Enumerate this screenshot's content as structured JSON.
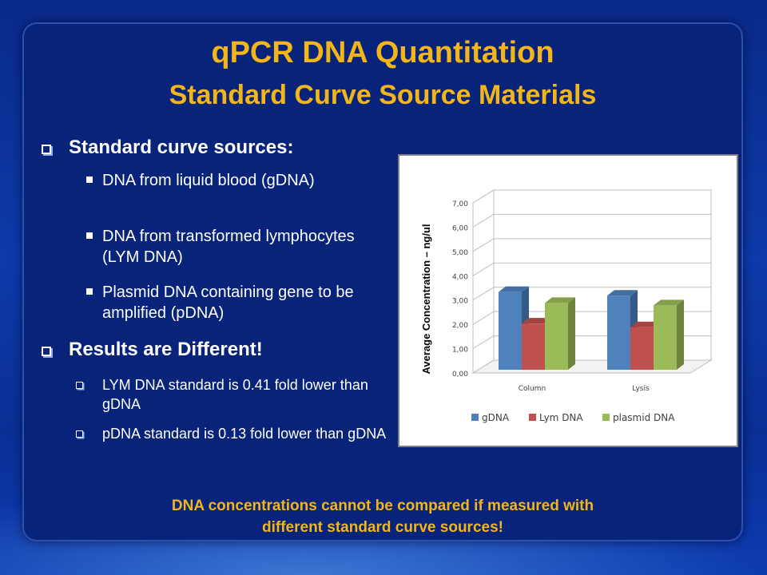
{
  "slide": {
    "title": "qPCR DNA Quantitation",
    "subtitle": "Standard Curve Source Materials",
    "footer_line1": "DNA concentrations cannot be compared if measured with",
    "footer_line2": "different standard curve sources!",
    "accent_color": "#f2b51a"
  },
  "bullets": {
    "sources_heading": "Standard curve sources:",
    "sources": [
      "DNA from liquid blood (gDNA)",
      "DNA from transformed lymphocytes (LYM DNA)",
      "Plasmid DNA containing gene to be amplified (pDNA)"
    ],
    "results_heading": "Results are Different!",
    "results": [
      "LYM DNA  standard is 0.41 fold lower than gDNA",
      "pDNA standard is 0.13 fold lower than gDNA"
    ]
  },
  "chart_data": {
    "type": "bar",
    "categories": [
      "Column",
      "Lysis"
    ],
    "series": [
      {
        "name": "gDNA",
        "color": "#4f81bd",
        "values": [
          3.2,
          3.05
        ]
      },
      {
        "name": "Lym DNA",
        "color": "#c0504d",
        "values": [
          1.9,
          1.75
        ]
      },
      {
        "name": "plasmid DNA",
        "color": "#9bbb59",
        "values": [
          2.75,
          2.65
        ]
      }
    ],
    "ylabel": "Average Concentration – ng/ul",
    "ylim": [
      0,
      7
    ],
    "yticks": [
      "0,00",
      "1,00",
      "2,00",
      "3,00",
      "4,00",
      "5,00",
      "6,00",
      "7,00"
    ],
    "grid": true,
    "legend": "bottom",
    "style": "3d"
  }
}
